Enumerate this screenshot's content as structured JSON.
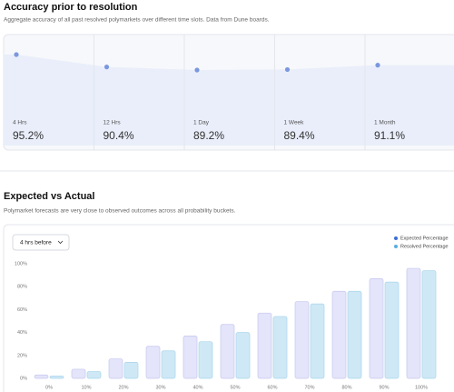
{
  "chart_data": [
    {
      "type": "line",
      "title": "Accuracy prior to resolution",
      "subtitle": "Aggregate accuracy of all past resolved polymarkets over different time slots. Data from Dune boards.",
      "categories": [
        "4 Hrs",
        "12 Hrs",
        "1 Day",
        "1 Week",
        "1 Month"
      ],
      "values": [
        95.2,
        90.4,
        89.2,
        89.4,
        91.1
      ],
      "value_labels": [
        "95.2%",
        "90.4%",
        "89.2%",
        "89.4%",
        "91.1%"
      ],
      "color": "#7b98de"
    },
    {
      "type": "bar",
      "title": "Expected vs Actual",
      "subtitle": "Polymarket forecasts are very close to observed outcomes across all probability buckets.",
      "dropdown": "4 hrs before",
      "categories": [
        "0%",
        "10%",
        "20%",
        "30%",
        "40%",
        "50%",
        "60%",
        "70%",
        "80%",
        "90%",
        "100%"
      ],
      "series": [
        {
          "name": "Expected Percentage",
          "color": "#e4e4fa",
          "marker_color": "#3b6fd4",
          "values": [
            3,
            8,
            17,
            28,
            37,
            47,
            57,
            67,
            76,
            87,
            96
          ]
        },
        {
          "name": "Resolved Percentage",
          "color": "#cfe8f5",
          "marker_color": "#5aaee0",
          "values": [
            2,
            6,
            14,
            24,
            32,
            40,
            54,
            65,
            76,
            84,
            94
          ]
        }
      ],
      "ylim": [
        0,
        100
      ],
      "yticks": [
        {
          "value": 0,
          "label": "0%"
        },
        {
          "value": 20,
          "label": "20%"
        },
        {
          "value": 40,
          "label": "40%"
        },
        {
          "value": 60,
          "label": "60%"
        },
        {
          "value": 80,
          "label": "80%"
        },
        {
          "value": 100,
          "label": "100%"
        }
      ],
      "legend": "top-right",
      "grid": false
    }
  ]
}
